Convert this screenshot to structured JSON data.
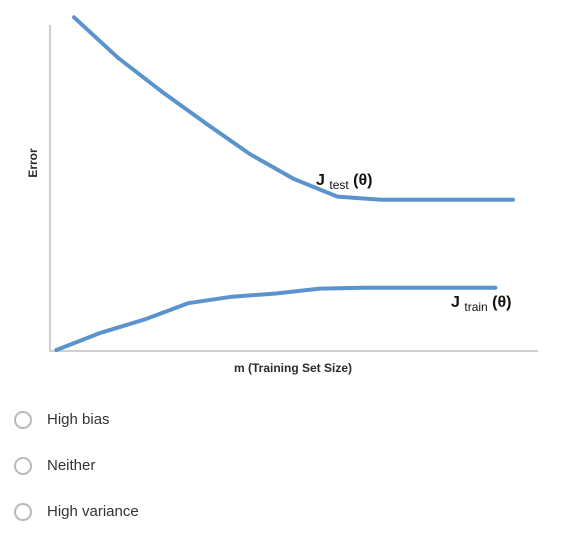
{
  "chart_data": {
    "type": "line",
    "xlabel": "m (Training Set Size)",
    "ylabel": "Error",
    "grid": false,
    "series": [
      {
        "name_main": "J",
        "name_sub": "test",
        "name_tail": "(θ)",
        "color": "#5b93cc",
        "points": [
          [
            0.0,
            1.03
          ],
          [
            0.1,
            0.905
          ],
          [
            0.2,
            0.8
          ],
          [
            0.3,
            0.702
          ],
          [
            0.4,
            0.607
          ],
          [
            0.5,
            0.53
          ],
          [
            0.6,
            0.475
          ],
          [
            0.7,
            0.465
          ],
          [
            0.8,
            0.465
          ],
          [
            0.9,
            0.465
          ],
          [
            1.0,
            0.465
          ]
        ]
      },
      {
        "name_main": "J",
        "name_sub": "train",
        "name_tail": "(θ)",
        "color": "#5b93cc",
        "points": [
          [
            -0.04,
            0.0
          ],
          [
            0.06,
            0.053
          ],
          [
            0.16,
            0.094
          ],
          [
            0.26,
            0.145
          ],
          [
            0.36,
            0.165
          ],
          [
            0.46,
            0.175
          ],
          [
            0.56,
            0.19
          ],
          [
            0.66,
            0.193
          ],
          [
            0.76,
            0.193
          ],
          [
            0.86,
            0.193
          ],
          [
            0.96,
            0.193
          ]
        ]
      }
    ]
  },
  "options": [
    {
      "label": "High bias"
    },
    {
      "label": "Neither"
    },
    {
      "label": "High variance"
    }
  ]
}
